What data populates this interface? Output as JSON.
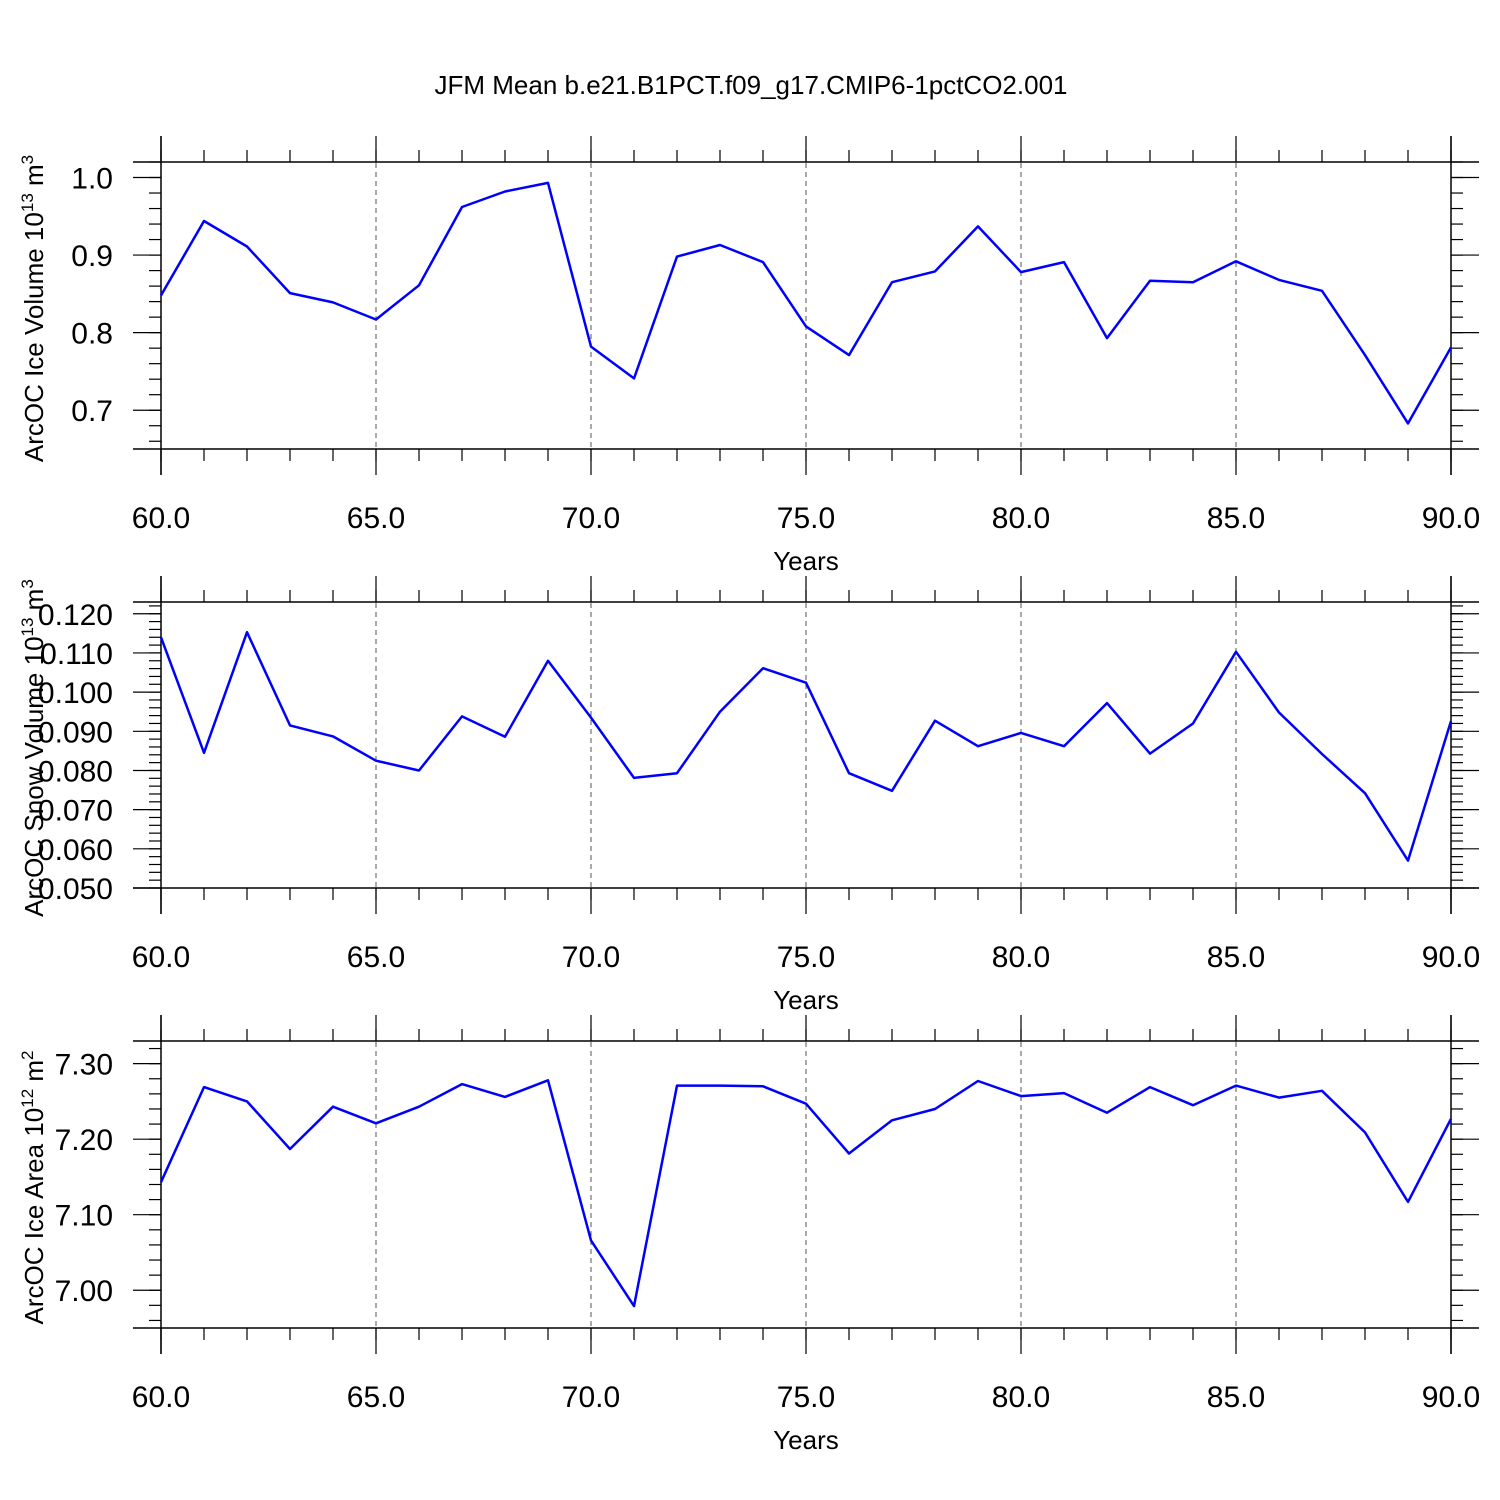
{
  "title": "JFM Mean b.e21.B1PCT.f09_g17.CMIP6-1pctCO2.001",
  "colors": {
    "series": "#0000ff",
    "axes": "#000000"
  },
  "chart_data": [
    {
      "type": "line",
      "ylabel": "ArcOC Ice Volume 10",
      "ylabel_sup": "13",
      "ylabel_unit": " m",
      "ylabel_unit_sup": "3",
      "xlabel": "Years",
      "xlim": [
        60,
        90
      ],
      "ylim": [
        0.65,
        1.02
      ],
      "x_ticks": [
        60,
        65,
        70,
        75,
        80,
        85,
        90
      ],
      "x_tick_labels": [
        "60.0",
        "65.0",
        "70.0",
        "75.0",
        "80.0",
        "85.0",
        "90.0"
      ],
      "y_ticks": [
        0.7,
        0.8,
        0.9,
        1.0
      ],
      "y_tick_labels": [
        "0.7",
        "0.8",
        "0.9",
        "1.0"
      ],
      "y_minor_step": 0.02,
      "grid": "vertical dashed at major x ticks",
      "series": [
        {
          "x": [
            60,
            61,
            62,
            63,
            64,
            65,
            66,
            67,
            68,
            69,
            70,
            71,
            72,
            73,
            74,
            75,
            76,
            77,
            78,
            79,
            80,
            81,
            82,
            83,
            84,
            85,
            86,
            87,
            88,
            89,
            90
          ],
          "values": [
            0.848,
            0.944,
            0.911,
            0.851,
            0.839,
            0.817,
            0.861,
            0.962,
            0.982,
            0.993,
            0.782,
            0.741,
            0.898,
            0.913,
            0.891,
            0.808,
            0.771,
            0.865,
            0.879,
            0.937,
            0.878,
            0.891,
            0.793,
            0.867,
            0.865,
            0.892,
            0.868,
            0.854,
            0.771,
            0.683,
            0.781
          ]
        }
      ]
    },
    {
      "type": "line",
      "ylabel": "ArcOC Snow Volume 10",
      "ylabel_sup": "13",
      "ylabel_unit": " m",
      "ylabel_unit_sup": "3",
      "xlabel": "Years",
      "xlim": [
        60,
        90
      ],
      "ylim": [
        0.05,
        0.123
      ],
      "x_ticks": [
        60,
        65,
        70,
        75,
        80,
        85,
        90
      ],
      "x_tick_labels": [
        "60.0",
        "65.0",
        "70.0",
        "75.0",
        "80.0",
        "85.0",
        "90.0"
      ],
      "y_ticks": [
        0.05,
        0.06,
        0.07,
        0.08,
        0.09,
        0.1,
        0.11,
        0.12
      ],
      "y_tick_labels": [
        "0.050",
        "0.060",
        "0.070",
        "0.080",
        "0.090",
        "0.100",
        "0.110",
        "0.120"
      ],
      "y_minor_step": 0.002,
      "grid": "vertical dashed at major x ticks",
      "series": [
        {
          "x": [
            60,
            61,
            62,
            63,
            64,
            65,
            66,
            67,
            68,
            69,
            70,
            71,
            72,
            73,
            74,
            75,
            76,
            77,
            78,
            79,
            80,
            81,
            82,
            83,
            84,
            85,
            86,
            87,
            88,
            89,
            90
          ],
          "values": [
            0.114,
            0.0845,
            0.1153,
            0.0915,
            0.0887,
            0.0825,
            0.08,
            0.0938,
            0.0886,
            0.108,
            0.0935,
            0.0781,
            0.0793,
            0.095,
            0.1061,
            0.1024,
            0.0793,
            0.0748,
            0.0927,
            0.0862,
            0.0896,
            0.0862,
            0.0972,
            0.0843,
            0.092,
            0.1103,
            0.0948,
            0.0842,
            0.0742,
            0.057,
            0.0926
          ]
        }
      ]
    },
    {
      "type": "line",
      "ylabel": "ArcOC Ice Area 10",
      "ylabel_sup": "12",
      "ylabel_unit": " m",
      "ylabel_unit_sup": "2",
      "xlabel": "Years",
      "xlim": [
        60,
        90
      ],
      "ylim": [
        6.95,
        7.33
      ],
      "x_ticks": [
        60,
        65,
        70,
        75,
        80,
        85,
        90
      ],
      "x_tick_labels": [
        "60.0",
        "65.0",
        "70.0",
        "75.0",
        "80.0",
        "85.0",
        "90.0"
      ],
      "y_ticks": [
        7.0,
        7.1,
        7.2,
        7.3
      ],
      "y_tick_labels": [
        "7.00",
        "7.10",
        "7.20",
        "7.30"
      ],
      "y_minor_step": 0.02,
      "grid": "vertical dashed at major x ticks",
      "series": [
        {
          "x": [
            60,
            61,
            62,
            63,
            64,
            65,
            66,
            67,
            68,
            69,
            70,
            71,
            72,
            73,
            74,
            75,
            76,
            77,
            78,
            79,
            80,
            81,
            82,
            83,
            84,
            85,
            86,
            87,
            88,
            89,
            90
          ],
          "values": [
            7.143,
            7.269,
            7.25,
            7.187,
            7.243,
            7.221,
            7.243,
            7.273,
            7.256,
            7.278,
            7.066,
            6.979,
            7.271,
            7.271,
            7.27,
            7.247,
            7.181,
            7.225,
            7.24,
            7.277,
            7.257,
            7.261,
            7.235,
            7.269,
            7.245,
            7.271,
            7.255,
            7.264,
            7.209,
            7.117,
            7.227
          ]
        }
      ]
    }
  ]
}
